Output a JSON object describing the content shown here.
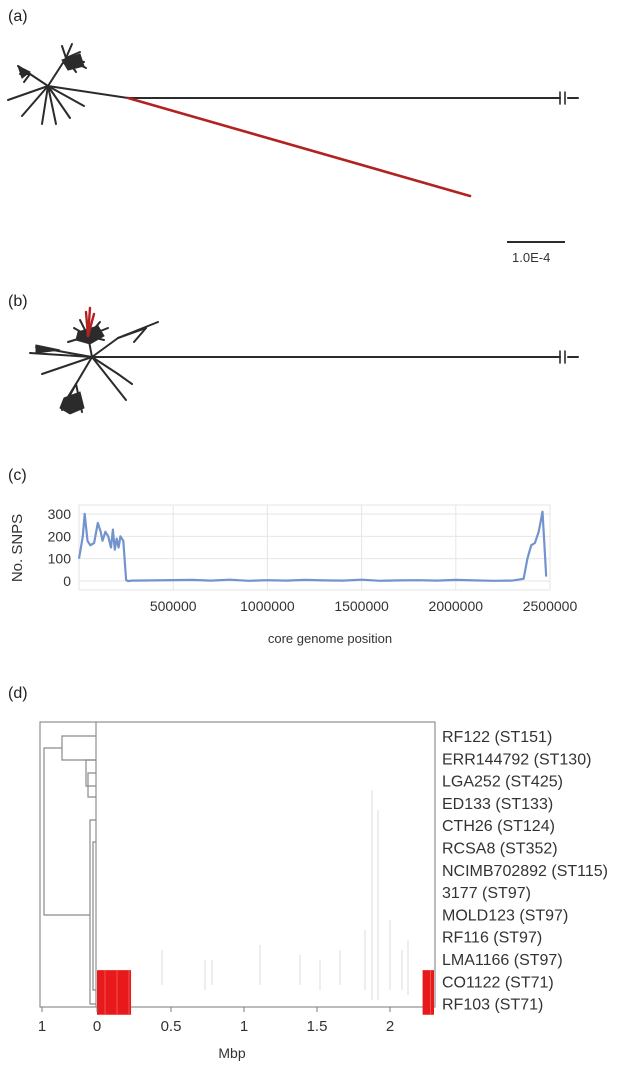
{
  "panels": {
    "a": {
      "label": "(a)",
      "scale_bar": "1.0E-4"
    },
    "b": {
      "label": "(b)"
    },
    "c": {
      "label": "(c)"
    },
    "d": {
      "label": "(d)"
    }
  },
  "colors": {
    "tree": "#2b2b2b",
    "highlight": "#b22222",
    "snp_line": "#7393cf",
    "recombination": "#e8191a",
    "grid": "#e6e6e6"
  },
  "chart_data": [
    {
      "type": "line",
      "panel": "c",
      "title": "",
      "xlabel": "core genome position",
      "ylabel": "No. SNPS",
      "xlim": [
        0,
        2500000
      ],
      "ylim": [
        -40,
        340
      ],
      "x_ticks": [
        500000,
        1000000,
        1500000,
        2000000,
        2500000
      ],
      "x_tick_labels": [
        "500000",
        "1000000",
        "1500000",
        "2000000",
        "2500000"
      ],
      "y_ticks": [
        0,
        100,
        200,
        300
      ],
      "y_tick_labels": [
        "0",
        "100",
        "200",
        "300"
      ],
      "grid": true,
      "series": [
        {
          "x": [
            0,
            20000,
            30000,
            45000,
            60000,
            80000,
            100000,
            115000,
            125000,
            140000,
            155000,
            170000,
            180000,
            190000,
            200000,
            210000,
            220000,
            235000,
            250000,
            260000,
            280000,
            400000,
            600000,
            700000,
            800000,
            900000,
            1000000,
            1100000,
            1200000,
            1300000,
            1400000,
            1500000,
            1600000,
            1700000,
            1800000,
            1900000,
            2000000,
            2100000,
            2200000,
            2300000,
            2360000,
            2380000,
            2400000,
            2420000,
            2440000,
            2460000,
            2470000,
            2480000
          ],
          "y": [
            100,
            200,
            300,
            180,
            160,
            170,
            260,
            220,
            180,
            220,
            200,
            150,
            230,
            140,
            190,
            150,
            200,
            180,
            5,
            0,
            2,
            3,
            5,
            2,
            6,
            1,
            4,
            2,
            5,
            3,
            2,
            6,
            1,
            3,
            4,
            2,
            5,
            3,
            1,
            2,
            10,
            100,
            160,
            170,
            220,
            310,
            170,
            20
          ]
        }
      ]
    },
    {
      "type": "heatmap",
      "panel": "d",
      "xlabel": "Mbp",
      "x_tick_labels": [
        "1",
        "0",
        "0.5",
        "1",
        "1.5",
        "2"
      ],
      "rows": [
        "RF122 (ST151)",
        "ERR144792 (ST130)",
        "LGA252 (ST425)",
        "ED133 (ST133)",
        "CTH26 (ST124)",
        "RCSA8 (ST352)",
        "NCIMB702892 (ST115)",
        "3177 (ST97)",
        "MOLD123 (ST97)",
        "RF116 (ST97)",
        "LMA1166 (ST97)",
        "CO1122 (ST71)",
        "RF103 (ST71)"
      ],
      "recombination_blocks": [
        {
          "rows": [
            "CO1122 (ST71)",
            "RF103 (ST71)"
          ],
          "start_mbp": 0.0,
          "end_mbp": 0.23
        },
        {
          "rows": [
            "CO1122 (ST71)",
            "RF103 (ST71)"
          ],
          "start_mbp": 2.2,
          "end_mbp": 2.3
        }
      ]
    }
  ]
}
